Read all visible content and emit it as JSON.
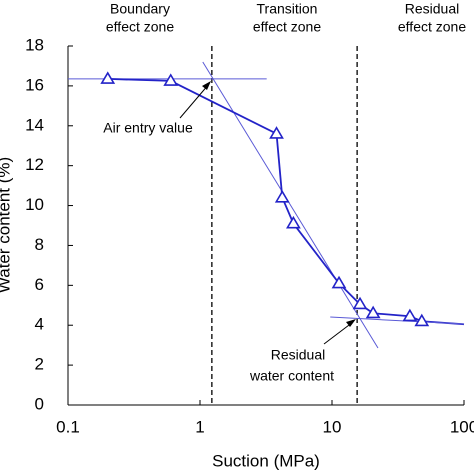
{
  "chart_data": {
    "type": "line",
    "xlabel": "Suction (MPa)",
    "ylabel": "Water content (%)",
    "xscale": "log",
    "xlim": [
      0.1,
      100
    ],
    "xticks": [
      0.1,
      1,
      10,
      100
    ],
    "ylim": [
      0,
      18
    ],
    "yticks": [
      0,
      2,
      4,
      6,
      8,
      10,
      12,
      14,
      16,
      18
    ],
    "series": [
      {
        "color": "#2323c8",
        "marker": "triangle",
        "x": [
          0.2,
          0.6,
          3.8,
          4.2,
          5.1,
          11.3,
          16.3,
          20.5,
          38.9,
          47.9
        ],
        "values": [
          16.35,
          16.25,
          13.6,
          10.4,
          9.1,
          6.1,
          5.05,
          4.6,
          4.45,
          4.2
        ]
      }
    ],
    "lines": [
      {
        "color": "#2323c8",
        "x": [
          47.9,
          100
        ],
        "values": [
          4.2,
          4.05
        ]
      },
      {
        "color": "#5a5ad6",
        "x": [
          0.1,
          3.2
        ],
        "values": [
          16.35,
          16.35
        ]
      },
      {
        "color": "#5a5ad6",
        "x": [
          1.05,
          22.3
        ],
        "values": [
          17.2,
          2.86
        ]
      },
      {
        "color": "#5a5ad6",
        "x": [
          9.7,
          100
        ],
        "values": [
          4.41,
          4.06
        ]
      }
    ],
    "vlines": [
      1.23,
      15.5
    ],
    "zones": [
      [
        "Boundary",
        "effect zone"
      ],
      [
        "Transition",
        "effect zone"
      ],
      [
        "Residual",
        "effect zone"
      ]
    ],
    "annotations": [
      [
        "Air entry value"
      ],
      [
        "Residual",
        "water content"
      ]
    ]
  }
}
